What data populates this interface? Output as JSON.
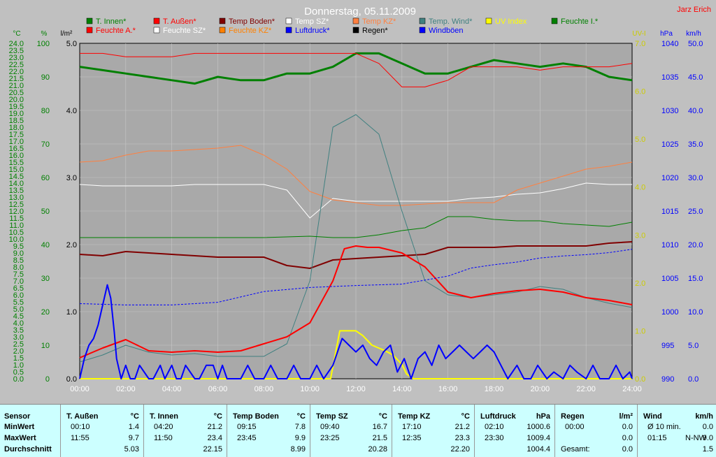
{
  "title": "Donnerstag, 05.11.2009",
  "author": "Jarz Erich",
  "units": {
    "degc": "°C",
    "pct": "%",
    "lm2": "l/m²",
    "uvi": "UV-I",
    "hpa": "hPa",
    "kmh": "km/h"
  },
  "legend": [
    {
      "label": "T. Innen*",
      "color": "#008000"
    },
    {
      "label": "T. Außen*",
      "color": "#ff0000"
    },
    {
      "label": "Temp Boden*",
      "color": "#800000"
    },
    {
      "label": "Temp SZ*",
      "color": "#ffffff"
    },
    {
      "label": "Temp KZ*",
      "color": "#ff8040"
    },
    {
      "label": "Temp. Wind*",
      "color": "#408080"
    },
    {
      "label": "UV Index",
      "color": "#ffff00"
    },
    {
      "label": "Feuchte I.*",
      "color": "#008000"
    },
    {
      "label": "Feuchte A.*",
      "color": "#ff0000"
    },
    {
      "label": "Feuchte SZ*",
      "color": "#ffffff"
    },
    {
      "label": "Feuchte KZ*",
      "color": "#ff8000"
    },
    {
      "label": "Luftdruck*",
      "color": "#0000ff"
    },
    {
      "label": "Regen*",
      "color": "#000000"
    },
    {
      "label": "Windböen",
      "color": "#0000ff"
    }
  ],
  "chart_data": {
    "type": "line",
    "x_ticks": [
      "00:00",
      "02:00",
      "04:00",
      "06:00",
      "08:00",
      "10:00",
      "12:00",
      "14:00",
      "16:00",
      "18:00",
      "20:00",
      "22:00",
      "24:00"
    ],
    "axes": {
      "degc": {
        "ticks": [
          "0.0",
          "0.5",
          "1.0",
          "1.5",
          "2.0",
          "2.5",
          "3.0",
          "3.5",
          "4.0",
          "4.5",
          "5.0",
          "5.5",
          "6.0",
          "6.5",
          "7.0",
          "7.5",
          "8.0",
          "8.5",
          "9.0",
          "9.5",
          "10.0",
          "10.5",
          "11.0",
          "11.5",
          "12.0",
          "12.5",
          "13.0",
          "13.5",
          "14.0",
          "14.5",
          "15.0",
          "15.5",
          "16.0",
          "16.5",
          "17.0",
          "17.5",
          "18.0",
          "18.5",
          "19.0",
          "19.5",
          "20.0",
          "20.5",
          "21.0",
          "21.5",
          "22.0",
          "22.5",
          "23.0",
          "23.5",
          "24.0"
        ],
        "range": [
          0,
          24
        ]
      },
      "pct": {
        "ticks": [
          "0",
          "10",
          "20",
          "30",
          "40",
          "50",
          "60",
          "70",
          "80",
          "90",
          "100"
        ],
        "range": [
          0,
          100
        ]
      },
      "lm2": {
        "ticks": [
          "0.0",
          "1.0",
          "2.0",
          "3.0",
          "4.0",
          "5.0"
        ],
        "range": [
          0,
          5
        ]
      },
      "uvi": {
        "ticks": [
          "0.0",
          "1.0",
          "2.0",
          "3.0",
          "4.0",
          "5.0",
          "6.0",
          "7.0"
        ],
        "range": [
          0,
          7
        ]
      },
      "hpa": {
        "ticks": [
          "990",
          "995",
          "1000",
          "1005",
          "1010",
          "1015",
          "1020",
          "1025",
          "1030",
          "1035",
          "1040"
        ],
        "range": [
          990,
          1040
        ]
      },
      "kmh": {
        "ticks": [
          "0.0",
          "5.0",
          "10.0",
          "15.0",
          "20.0",
          "25.0",
          "30.0",
          "35.0",
          "40.0",
          "45.0",
          "50.0"
        ],
        "range": [
          0,
          50
        ]
      }
    },
    "series": [
      {
        "name": "T. Innen*",
        "axis": "pct",
        "color": "#008000",
        "width": 3,
        "x": [
          0,
          1,
          2,
          3,
          4,
          5,
          6,
          7,
          8,
          9,
          10,
          11,
          12,
          13,
          14,
          15,
          16,
          17,
          18,
          19,
          20,
          21,
          22,
          23,
          24
        ],
        "y": [
          93,
          92,
          91,
          90,
          89,
          88,
          90,
          89,
          89,
          91,
          91,
          93,
          97,
          97,
          94,
          91,
          91,
          93,
          95,
          94,
          93,
          94,
          93,
          90,
          89
        ]
      },
      {
        "name": "T. Außen*",
        "axis": "pct",
        "color": "#ff0000",
        "width": 1,
        "x": [
          0,
          1,
          2,
          3,
          4,
          5,
          6,
          7,
          8,
          9,
          10,
          11,
          12,
          13,
          14,
          15,
          16,
          17,
          18,
          19,
          20,
          21,
          22,
          23,
          24
        ],
        "y": [
          97,
          97,
          96,
          96,
          96,
          97,
          97,
          97,
          97,
          97,
          97,
          97,
          97,
          94,
          87,
          87,
          89,
          93,
          93,
          93,
          92,
          93,
          93,
          93,
          94
        ]
      },
      {
        "name": "Temp Boden*",
        "axis": "degc",
        "color": "#800000",
        "width": 2,
        "x": [
          0,
          1,
          2,
          3,
          4,
          5,
          6,
          7,
          8,
          9,
          10,
          11,
          12,
          13,
          14,
          15,
          16,
          17,
          18,
          19,
          20,
          21,
          22,
          23,
          24
        ],
        "y": [
          8.9,
          8.8,
          9.1,
          9.0,
          8.9,
          8.8,
          8.7,
          8.7,
          8.7,
          8.1,
          7.9,
          8.5,
          8.6,
          8.7,
          8.8,
          8.9,
          9.4,
          9.4,
          9.4,
          9.5,
          9.5,
          9.5,
          9.5,
          9.7,
          9.8
        ]
      },
      {
        "name": "Temp SZ*",
        "axis": "degc",
        "color": "#ffffff",
        "width": 1,
        "x": [
          0,
          1,
          2,
          3,
          4,
          5,
          6,
          7,
          8,
          9,
          10,
          11,
          12,
          13,
          14,
          15,
          16,
          17,
          18,
          19,
          20,
          21,
          22,
          23,
          24
        ],
        "y": [
          13.9,
          13.8,
          13.8,
          13.8,
          13.8,
          13.9,
          13.9,
          13.9,
          13.9,
          13.5,
          11.5,
          12.9,
          12.7,
          12.7,
          12.7,
          12.7,
          12.7,
          12.9,
          13.0,
          13.2,
          13.3,
          13.6,
          14.0,
          13.9,
          13.9
        ]
      },
      {
        "name": "Temp KZ*",
        "axis": "degc",
        "color": "#ff8040",
        "width": 1,
        "x": [
          0,
          1,
          2,
          3,
          4,
          5,
          6,
          7,
          8,
          9,
          10,
          11,
          12,
          13,
          14,
          15,
          16,
          17,
          18,
          19,
          20,
          21,
          22,
          23,
          24
        ],
        "y": [
          15.5,
          15.6,
          16.0,
          16.3,
          16.3,
          16.4,
          16.5,
          16.7,
          16.0,
          15.0,
          13.4,
          12.8,
          12.6,
          12.4,
          12.4,
          12.5,
          12.6,
          12.6,
          12.6,
          13.5,
          14.0,
          14.5,
          15.0,
          15.2,
          15.5
        ]
      },
      {
        "name": "Temp. Wind*",
        "axis": "degc",
        "color": "#408080",
        "width": 1,
        "x": [
          0,
          1,
          2,
          3,
          4,
          5,
          6,
          7,
          8,
          9,
          10,
          11,
          12,
          13,
          14,
          15,
          16,
          17,
          18,
          19,
          20,
          21,
          22,
          23,
          24
        ],
        "y": [
          1.2,
          1.7,
          2.4,
          1.9,
          1.7,
          1.8,
          1.6,
          1.6,
          1.6,
          2.5,
          7.0,
          18.0,
          18.9,
          17.5,
          12.0,
          7.0,
          6.0,
          5.8,
          6.0,
          6.2,
          6.6,
          6.4,
          5.8,
          5.4,
          5.1
        ]
      },
      {
        "name": "Feuchte I.*",
        "axis": "degc",
        "color": "#008000",
        "width": 1,
        "x": [
          0,
          2,
          4,
          6,
          8,
          10,
          11,
          12,
          13,
          14,
          15,
          16,
          17,
          18,
          19,
          20,
          21,
          22,
          23,
          24
        ],
        "y": [
          10.1,
          10.1,
          10.1,
          10.1,
          10.1,
          10.2,
          10.1,
          10.1,
          10.3,
          10.6,
          10.8,
          11.6,
          11.6,
          11.4,
          11.3,
          11.3,
          11.1,
          11.0,
          10.9,
          11.2
        ]
      },
      {
        "name": "Feuchte A.*",
        "axis": "degc",
        "color": "#ff0000",
        "width": 2,
        "x": [
          0,
          1,
          2,
          3,
          4,
          5,
          6,
          7,
          8,
          9,
          10,
          11,
          11.5,
          12,
          12.5,
          13,
          14,
          15,
          16,
          17,
          18,
          19,
          20,
          21,
          22,
          23,
          24
        ],
        "y": [
          1.5,
          2.2,
          2.8,
          2.0,
          1.9,
          2.0,
          1.9,
          2.0,
          2.5,
          3.0,
          4.0,
          7.0,
          9.3,
          9.5,
          9.4,
          9.4,
          9.0,
          8.0,
          6.2,
          5.8,
          6.1,
          6.3,
          6.4,
          6.2,
          5.8,
          5.6,
          5.3
        ]
      },
      {
        "name": "Luftdruck*",
        "axis": "hpa",
        "color": "#0000ff",
        "width": 1,
        "dashed": true,
        "x": [
          0,
          2,
          4,
          6,
          8,
          10,
          12,
          14,
          16,
          17,
          18,
          19,
          20,
          21,
          22,
          23,
          24
        ],
        "y": [
          1001.2,
          1001.0,
          1001.0,
          1001.4,
          1003.0,
          1003.6,
          1003.9,
          1004.1,
          1005.3,
          1006.5,
          1007.0,
          1007.4,
          1008.0,
          1008.3,
          1008.5,
          1008.8,
          1009.3
        ]
      },
      {
        "name": "UV Index",
        "axis": "uvi",
        "color": "#ffff00",
        "width": 2,
        "x": [
          0,
          10.9,
          11.3,
          11.6,
          12.0,
          12.3,
          12.7,
          13.2,
          13.6,
          14.0,
          14.2,
          14.5,
          24
        ],
        "y": [
          0,
          0,
          1.0,
          1.0,
          1.0,
          0.9,
          0.7,
          0.6,
          0.5,
          0.3,
          0.1,
          0,
          0
        ]
      },
      {
        "name": "Windböen",
        "axis": "kmh",
        "color": "#0000ff",
        "width": 2,
        "x": [
          0,
          0.2,
          0.4,
          0.6,
          0.8,
          1.0,
          1.2,
          1.35,
          1.5,
          1.6,
          1.8,
          2.0,
          2.2,
          2.4,
          2.6,
          3.0,
          3.2,
          3.5,
          3.7,
          4.0,
          4.2,
          4.4,
          4.6,
          5.0,
          5.2,
          5.5,
          5.8,
          6.0,
          6.2,
          6.4,
          7.0,
          7.3,
          7.6,
          8.0,
          8.3,
          8.6,
          9.0,
          9.3,
          9.6,
          10.0,
          10.3,
          10.6,
          11.0,
          11.2,
          11.4,
          11.7,
          12.0,
          12.3,
          12.6,
          12.9,
          13.2,
          13.5,
          13.8,
          14.1,
          14.4,
          14.7,
          15.0,
          15.3,
          15.6,
          15.9,
          16.2,
          16.5,
          16.8,
          17.1,
          17.4,
          17.7,
          18.0,
          18.3,
          18.6,
          19.0,
          19.3,
          19.6,
          19.9,
          20.3,
          20.6,
          21.0,
          21.3,
          21.6,
          22.0,
          22.3,
          22.6,
          23.0,
          23.3,
          23.6,
          23.9,
          24.0
        ],
        "y": [
          0,
          3,
          5,
          6,
          8,
          11,
          14,
          12,
          7,
          3,
          0,
          2,
          0,
          0,
          2,
          0,
          0,
          2,
          0,
          2,
          0,
          0,
          2,
          0,
          0,
          2,
          2,
          0,
          2,
          0,
          0,
          2,
          0,
          0,
          2,
          0,
          0,
          2,
          0,
          0,
          2,
          0,
          2,
          4,
          6,
          5,
          4,
          5,
          3,
          2,
          4,
          5,
          1,
          3,
          0,
          3,
          4,
          2,
          5,
          3,
          4,
          5,
          4,
          3,
          4,
          5,
          4,
          2,
          0,
          2,
          0,
          0,
          2,
          0,
          1,
          0,
          2,
          1,
          0,
          2,
          0,
          0,
          2,
          0,
          1,
          0
        ]
      }
    ],
    "title": "Donnerstag, 05.11.2009",
    "legend_position": "top",
    "grid": true
  },
  "stats": {
    "labels": {
      "sensor": "Sensor",
      "min": "MinWert",
      "max": "MaxWert",
      "avg": "Durchschnitt"
    },
    "columns": [
      {
        "name": "T. Außen",
        "unit": "°C",
        "min_t": "00:10",
        "min_v": "1.4",
        "max_t": "11:55",
        "max_v": "9.7",
        "avg": "5.03"
      },
      {
        "name": "T. Innen",
        "unit": "°C",
        "min_t": "04:20",
        "min_v": "21.2",
        "max_t": "11:50",
        "max_v": "23.4",
        "avg": "22.15"
      },
      {
        "name": "Temp Boden",
        "unit": "°C",
        "min_t": "09:15",
        "min_v": "7.8",
        "max_t": "23:45",
        "max_v": "9.9",
        "avg": "8.99"
      },
      {
        "name": "Temp SZ",
        "unit": "°C",
        "min_t": "09:40",
        "min_v": "16.7",
        "max_t": "23:25",
        "max_v": "21.5",
        "avg": "20.28"
      },
      {
        "name": "Temp KZ",
        "unit": "°C",
        "min_t": "17:10",
        "min_v": "21.2",
        "max_t": "12:35",
        "max_v": "23.3",
        "avg": "22.20"
      },
      {
        "name": "Luftdruck",
        "unit": "hPa",
        "min_t": "02:10",
        "min_v": "1000.6",
        "max_t": "23:30",
        "max_v": "1009.4",
        "avg": "1004.4"
      }
    ],
    "regen": {
      "name": "Regen",
      "unit": "l/m²",
      "min_t": "00:00",
      "min_v": "0.0",
      "max_t": "",
      "max_v": "0.0",
      "gesamt_label": "Gesamt:",
      "gesamt_v": "0.0"
    },
    "wind": {
      "name": "Wind",
      "unit": "km/h",
      "min_t": "Ø 10 min.",
      "min_v": "0.0",
      "max_t": "01:15",
      "max_dir": "N-NW",
      "max_v": "9.0",
      "avg": "1.5"
    }
  }
}
